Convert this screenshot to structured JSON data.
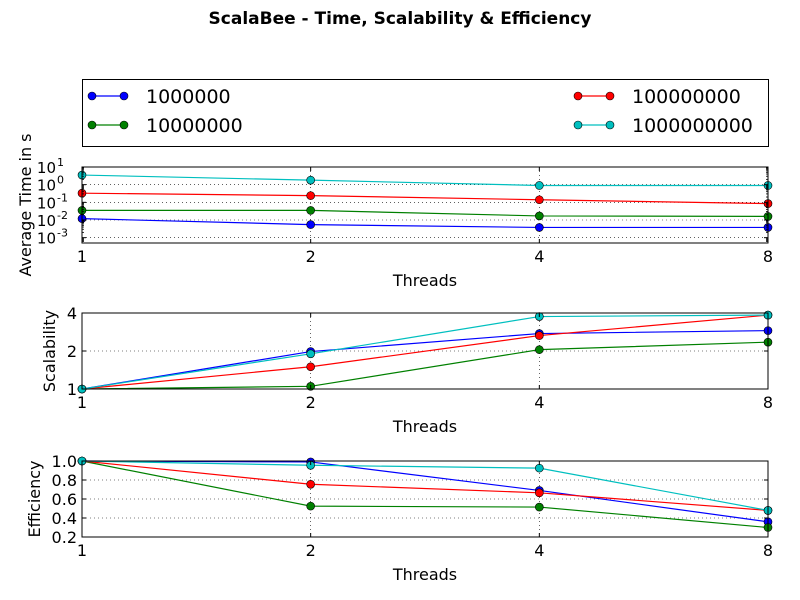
{
  "title": "ScalaBee - Time, Scalability & Efficiency",
  "legend": {
    "placement": "top",
    "entries": [
      "1000000",
      "10000000",
      "100000000",
      "1000000000"
    ]
  },
  "colors": {
    "1000000": "#0000ff",
    "10000000": "#008000",
    "100000000": "#ff0000",
    "1000000000": "#00bfbf"
  },
  "chart_data": [
    {
      "type": "line",
      "ylabel": "Average Time in s",
      "xlabel": "Threads",
      "x": [
        1,
        2,
        4,
        8
      ],
      "xscale": "log2",
      "xticks": [
        "1",
        "2",
        "4",
        "8"
      ],
      "yscale": "log",
      "ylim": [
        0.0005,
        10
      ],
      "yticks": [
        "10^-3",
        "10^-2",
        "10^-1",
        "10^0",
        "10^1"
      ],
      "grid": true,
      "series": [
        {
          "name": "1000000",
          "values": [
            0.012,
            0.0055,
            0.0038,
            0.0038
          ]
        },
        {
          "name": "10000000",
          "values": [
            0.035,
            0.035,
            0.017,
            0.016
          ]
        },
        {
          "name": "100000000",
          "values": [
            0.33,
            0.24,
            0.14,
            0.085
          ]
        },
        {
          "name": "1000000000",
          "values": [
            3.5,
            1.8,
            0.9,
            0.9
          ]
        }
      ]
    },
    {
      "type": "line",
      "ylabel": "Scalability",
      "xlabel": "Threads",
      "x": [
        1,
        2,
        4,
        8
      ],
      "xscale": "log2",
      "xticks": [
        "1",
        "2",
        "4",
        "8"
      ],
      "yscale": "log2",
      "ylim": [
        1,
        4
      ],
      "yticks": [
        "1",
        "2",
        "4"
      ],
      "grid": true,
      "series": [
        {
          "name": "1000000",
          "values": [
            1.0,
            1.98,
            2.75,
            2.9
          ]
        },
        {
          "name": "10000000",
          "values": [
            1.0,
            1.05,
            2.05,
            2.35
          ]
        },
        {
          "name": "100000000",
          "values": [
            1.0,
            1.5,
            2.65,
            3.85
          ]
        },
        {
          "name": "1000000000",
          "values": [
            1.0,
            1.9,
            3.75,
            3.85
          ]
        }
      ]
    },
    {
      "type": "line",
      "ylabel": "Efficiency",
      "xlabel": "Threads",
      "x": [
        1,
        2,
        4,
        8
      ],
      "xscale": "log2",
      "xticks": [
        "1",
        "2",
        "4",
        "8"
      ],
      "yscale": "linear",
      "ylim": [
        0.2,
        1.0
      ],
      "yticks": [
        "0.2",
        "0.4",
        "0.6",
        "0.8",
        "1.0"
      ],
      "grid": true,
      "series": [
        {
          "name": "1000000",
          "values": [
            1.0,
            0.99,
            0.69,
            0.36
          ]
        },
        {
          "name": "10000000",
          "values": [
            1.0,
            0.525,
            0.515,
            0.3
          ]
        },
        {
          "name": "100000000",
          "values": [
            1.0,
            0.755,
            0.665,
            0.48
          ]
        },
        {
          "name": "1000000000",
          "values": [
            1.0,
            0.955,
            0.925,
            0.48
          ]
        }
      ]
    }
  ]
}
